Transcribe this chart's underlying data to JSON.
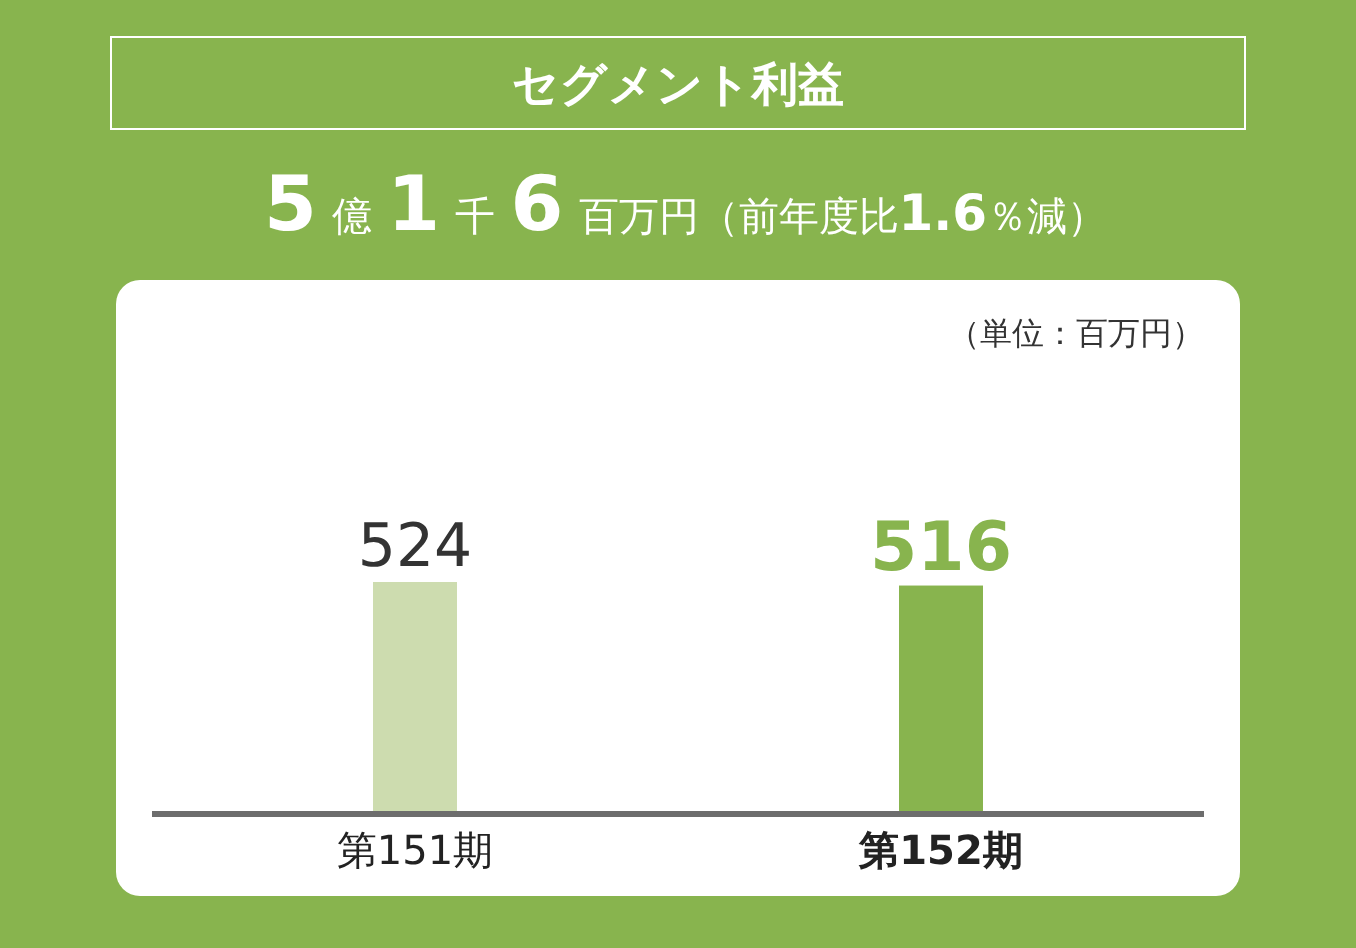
{
  "chart_data": {
    "type": "bar",
    "title": "セグメント利益",
    "subtitle": "5億1千6百万円（前年度比1.6％減）",
    "annotations": [
      "（単位：百万円）"
    ],
    "categories": [
      "第151期",
      "第152期"
    ],
    "values": [
      524,
      516
    ],
    "colors": [
      "#cddcaf",
      "#88b44e"
    ],
    "data_labels": true
  }
}
